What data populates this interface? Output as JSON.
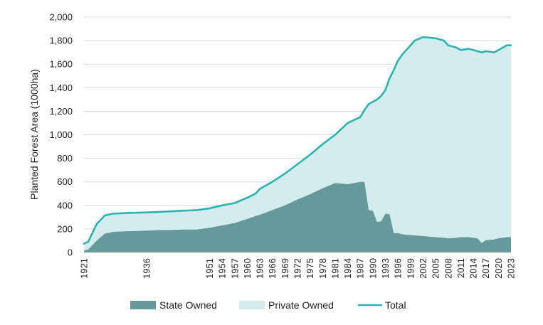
{
  "chart_data": {
    "type": "area",
    "title": "",
    "xlabel": "",
    "ylabel": "Planted Forest Area (1000ha)",
    "ylim": [
      0,
      2000
    ],
    "yticks": [
      0,
      200,
      400,
      600,
      800,
      1000,
      1200,
      1400,
      1600,
      1800,
      2000
    ],
    "ytick_labels": [
      "0",
      "200",
      "400",
      "600",
      "800",
      "1,000",
      "1,200",
      "1,400",
      "1,600",
      "1,800",
      "2,000"
    ],
    "xlim": [
      1921,
      2023
    ],
    "xticks": [
      1921,
      1936,
      1951,
      1954,
      1957,
      1960,
      1963,
      1966,
      1969,
      1972,
      1975,
      1978,
      1981,
      1984,
      1987,
      1990,
      1993,
      1996,
      1999,
      2002,
      2005,
      2008,
      2011,
      2014,
      2017,
      2020,
      2023
    ],
    "grid": "horizontal",
    "legend_position": "bottom",
    "colors": {
      "state": "#669999",
      "private": "#d4ecee",
      "total": "#2ab3b3",
      "grid": "#d9d9d9"
    },
    "series": [
      {
        "name": "State Owned",
        "kind": "stacked-area",
        "x": [
          1921,
          1922,
          1924,
          1926,
          1928,
          1931,
          1936,
          1939,
          1942,
          1945,
          1948,
          1951,
          1954,
          1957,
          1960,
          1962,
          1963,
          1966,
          1969,
          1972,
          1975,
          1978,
          1981,
          1984,
          1987,
          1988,
          1989,
          1990,
          1991,
          1992,
          1993,
          1994,
          1995,
          1996,
          1997,
          1998,
          1999,
          2000,
          2002,
          2005,
          2007,
          2008,
          2010,
          2011,
          2013,
          2015,
          2016,
          2017,
          2019,
          2020,
          2022,
          2023
        ],
        "values": [
          15,
          25,
          100,
          160,
          175,
          180,
          185,
          190,
          190,
          195,
          195,
          210,
          230,
          250,
          285,
          310,
          320,
          360,
          400,
          450,
          495,
          545,
          590,
          580,
          600,
          600,
          360,
          355,
          260,
          265,
          330,
          325,
          165,
          165,
          155,
          150,
          148,
          145,
          140,
          130,
          125,
          120,
          125,
          130,
          130,
          120,
          80,
          105,
          110,
          120,
          130,
          130
        ]
      },
      {
        "name": "Private Owned",
        "kind": "stacked-area",
        "note": "fill between State Owned and Total"
      },
      {
        "name": "Total",
        "kind": "line",
        "x": [
          1921,
          1922,
          1924,
          1926,
          1928,
          1931,
          1936,
          1939,
          1942,
          1945,
          1948,
          1951,
          1954,
          1957,
          1960,
          1962,
          1963,
          1966,
          1969,
          1972,
          1975,
          1978,
          1981,
          1984,
          1987,
          1988,
          1989,
          1990,
          1991,
          1992,
          1993,
          1994,
          1995,
          1996,
          1997,
          1998,
          1999,
          2000,
          2002,
          2005,
          2007,
          2008,
          2010,
          2011,
          2013,
          2015,
          2016,
          2017,
          2019,
          2020,
          2022,
          2023
        ],
        "values": [
          75,
          90,
          240,
          315,
          330,
          335,
          340,
          345,
          350,
          355,
          360,
          375,
          400,
          420,
          465,
          500,
          540,
          600,
          670,
          750,
          830,
          920,
          1000,
          1100,
          1150,
          1210,
          1260,
          1280,
          1300,
          1330,
          1380,
          1480,
          1550,
          1630,
          1680,
          1720,
          1760,
          1800,
          1830,
          1820,
          1800,
          1760,
          1740,
          1720,
          1730,
          1710,
          1700,
          1710,
          1700,
          1720,
          1760,
          1760
        ]
      }
    ],
    "legend": [
      "State Owned",
      "Private Owned",
      "Total"
    ]
  }
}
